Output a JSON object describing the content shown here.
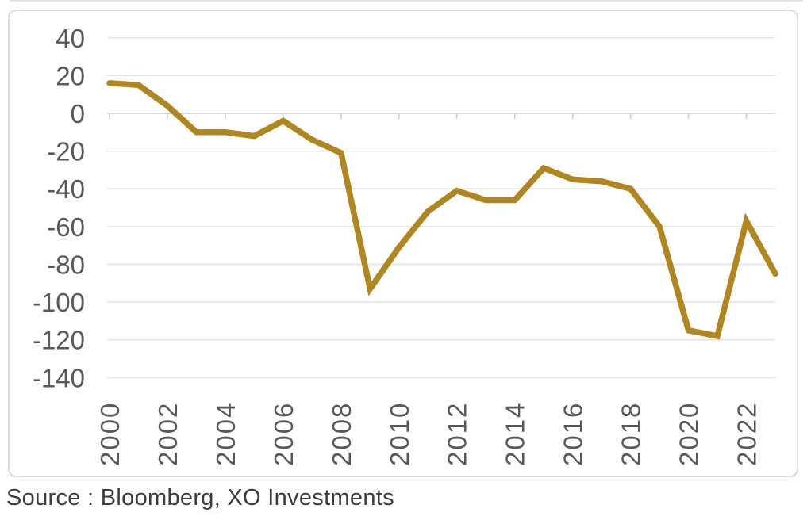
{
  "chart_data": {
    "type": "line",
    "title": "",
    "xlabel": "",
    "ylabel": "",
    "x": [
      2000,
      2001,
      2002,
      2003,
      2004,
      2005,
      2006,
      2007,
      2008,
      2009,
      2010,
      2011,
      2012,
      2013,
      2014,
      2015,
      2016,
      2017,
      2018,
      2019,
      2020,
      2021,
      2022,
      2023
    ],
    "series": [
      {
        "name": "main-series",
        "values": [
          16,
          15,
          4,
          -10,
          -10,
          -12,
          -4,
          -14,
          -21,
          -93,
          -71,
          -52,
          -41,
          -46,
          -46,
          -29,
          -35,
          -36,
          -40,
          -60,
          -115,
          -118,
          -57,
          -85
        ]
      }
    ],
    "y_ticks": [
      40,
      20,
      0,
      -20,
      -40,
      -60,
      -80,
      -100,
      -120,
      -140
    ],
    "x_tick_labels": [
      "2000",
      "2002",
      "2004",
      "2006",
      "2008",
      "2010",
      "2012",
      "2014",
      "2016",
      "2018",
      "2020",
      "2022"
    ],
    "ylim": [
      -140,
      40
    ],
    "grid": true,
    "legend_position": "none"
  },
  "source_note": "Source : Bloomberg, XO Investments",
  "colors": {
    "line": "#B0861E",
    "grid": "#E3E3E3",
    "axis": "#C9CED6",
    "tick_label": "#595959",
    "source_text": "#3C3C3C",
    "border": "#DCDCDC"
  }
}
